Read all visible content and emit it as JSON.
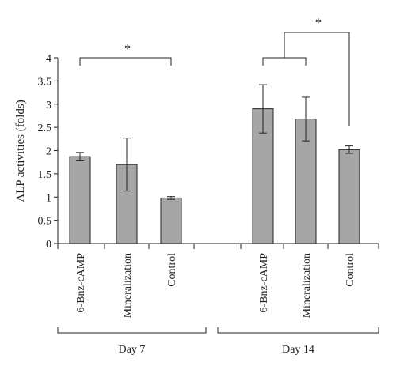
{
  "chart_data": {
    "type": "bar",
    "ylabel": "ALP activities (folds)",
    "ylim": [
      0,
      4
    ],
    "yticks": [
      "0",
      "0.5",
      "1",
      "1.5",
      "2",
      "2.5",
      "3",
      "3.5",
      "4"
    ],
    "bar_color": "#a6a6a6",
    "groups": [
      {
        "label": "Day 7",
        "categories": [
          "6-Bnz-cAMP",
          "Mineralization",
          "Control"
        ],
        "values": [
          1.87,
          1.7,
          0.98
        ],
        "errors": [
          0.09,
          0.57,
          0.03
        ]
      },
      {
        "label": "Day 14",
        "categories": [
          "6-Bnz-cAMP",
          "Mineralization",
          "Control"
        ],
        "values": [
          2.9,
          2.68,
          2.02
        ],
        "errors": [
          0.52,
          0.47,
          0.08
        ]
      }
    ],
    "annotations": [
      {
        "text": "*",
        "type": "significance",
        "group": "Day 7",
        "compares": "6-Bnz-cAMP vs Control"
      },
      {
        "text": "*",
        "type": "significance",
        "group": "Day 14",
        "compares": "6-Bnz-cAMP and Mineralization vs Control"
      }
    ]
  }
}
